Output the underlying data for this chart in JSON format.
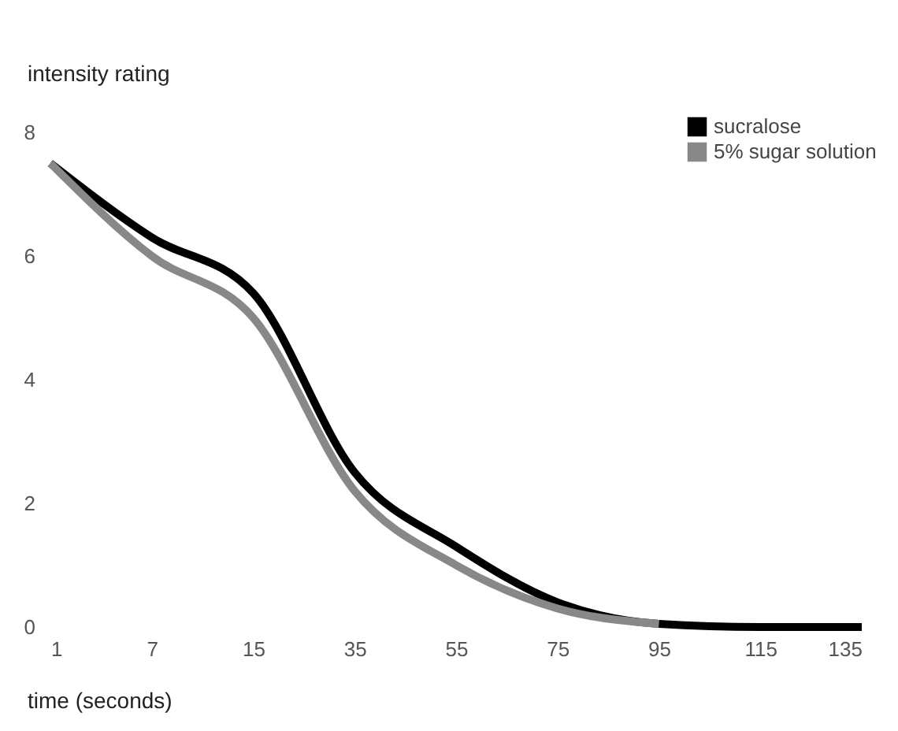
{
  "chart_data": {
    "type": "line",
    "xlabel": "time (seconds)",
    "ylabel": "intensity rating",
    "categories": [
      "1",
      "7",
      "15",
      "35",
      "55",
      "75",
      "95",
      "115",
      "135"
    ],
    "series": [
      {
        "name": "sucralose",
        "color": "#000000",
        "values": [
          7.5,
          6.3,
          5.4,
          2.5,
          1.3,
          0.4,
          0.05,
          0,
          0
        ]
      },
      {
        "name": "5% sugar solution",
        "color": "#888888",
        "values": [
          7.5,
          6.0,
          5.0,
          2.2,
          1.0,
          0.3,
          0.05,
          null,
          null
        ]
      }
    ],
    "ylim": [
      0,
      8
    ],
    "yticks": [
      0,
      2,
      4,
      6,
      8
    ],
    "grid": false,
    "legend": "top right",
    "marker": "none",
    "line_style": "solid"
  }
}
